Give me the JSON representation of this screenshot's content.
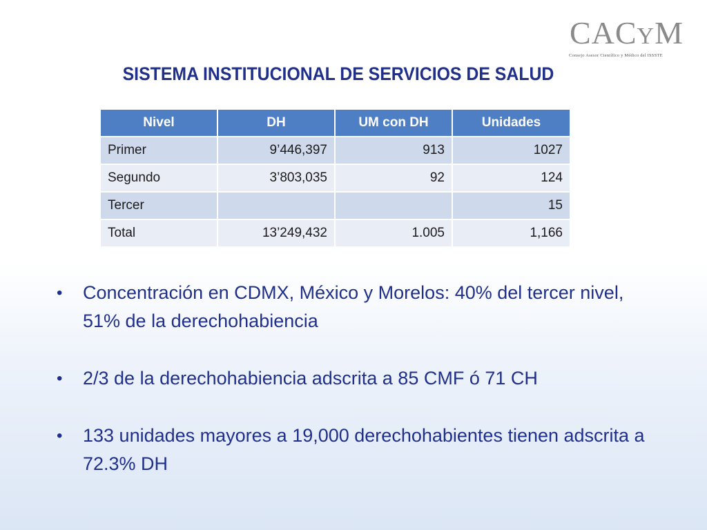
{
  "logo": {
    "name_main": "CAC",
    "name_small": "Y",
    "name_end": "M",
    "subtitle": "Consejo Asesor Científico y Médico del ISSSTE"
  },
  "title": "SISTEMA INSTITUCIONAL DE SERVICIOS DE SALUD",
  "table": {
    "headers": [
      "Nivel",
      "DH",
      "UM con DH",
      "Unidades"
    ],
    "rows": [
      [
        "Primer",
        "9’446,397",
        "913",
        "1027"
      ],
      [
        "Segundo",
        "3’803,035",
        "92",
        "124"
      ],
      [
        "Tercer",
        "",
        "",
        "15"
      ],
      [
        "Total",
        "13’249,432",
        "1.005",
        "1,166"
      ]
    ]
  },
  "bullet_glyph": "•",
  "bullets": [
    "Concentración en CDMX, México y Morelos: 40% del tercer nivel, 51% de la derechohabiencia",
    "2/3 de la derechohabiencia adscrita a 85 CMF ó 71 CH",
    "133 unidades mayores a 19,000 derechohabientes tienen adscrita a 72.3% DH"
  ]
}
